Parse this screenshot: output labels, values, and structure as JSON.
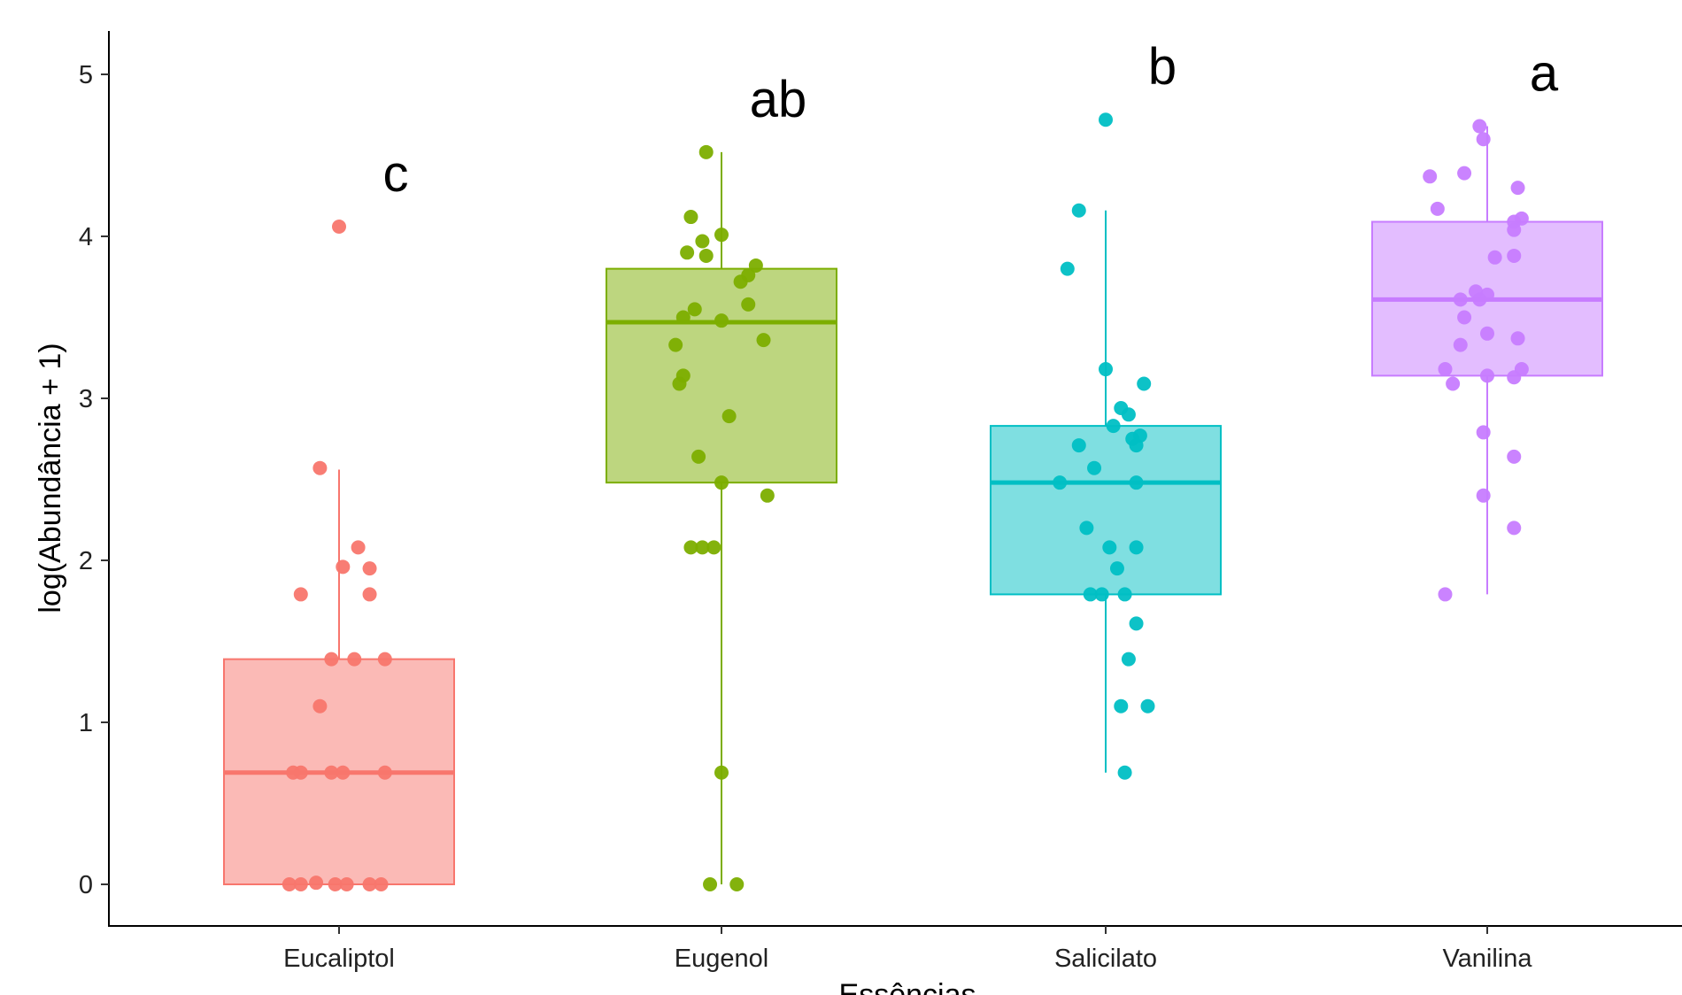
{
  "chart_data": {
    "type": "box",
    "title": "",
    "xlabel": "Essências",
    "ylabel": "log(Abundância + 1)",
    "ylim": [
      -0.25,
      5.25
    ],
    "yticks": [
      0,
      1,
      2,
      3,
      4,
      5
    ],
    "grid": false,
    "legend": "none",
    "categories": [
      "Eucaliptol",
      "Eugenol",
      "Salicilato",
      "Vanilina"
    ],
    "series": [
      {
        "category": "Eucaliptol",
        "color": "#F8766D",
        "letter": "c",
        "box": {
          "q1": 0.0,
          "median": 0.69,
          "q3": 1.39,
          "whisker_low": 0.0,
          "whisker_high": 2.56
        },
        "points": [
          {
            "x": 0,
            "y": 4.06
          },
          {
            "x": -0.05,
            "y": 2.57
          },
          {
            "x": 0.05,
            "y": 2.08
          },
          {
            "x": 0.01,
            "y": 1.96
          },
          {
            "x": 0.08,
            "y": 1.95
          },
          {
            "x": -0.1,
            "y": 1.79
          },
          {
            "x": 0.08,
            "y": 1.79
          },
          {
            "x": -0.02,
            "y": 1.39
          },
          {
            "x": 0.04,
            "y": 1.39
          },
          {
            "x": 0.12,
            "y": 1.39
          },
          {
            "x": -0.05,
            "y": 1.1
          },
          {
            "x": -0.12,
            "y": 0.69
          },
          {
            "x": -0.1,
            "y": 0.69
          },
          {
            "x": -0.02,
            "y": 0.69
          },
          {
            "x": 0.01,
            "y": 0.69
          },
          {
            "x": 0.12,
            "y": 0.69
          },
          {
            "x": -0.13,
            "y": 0.0
          },
          {
            "x": -0.1,
            "y": 0.0
          },
          {
            "x": -0.06,
            "y": 0.01
          },
          {
            "x": -0.01,
            "y": 0.0
          },
          {
            "x": 0.02,
            "y": 0.0
          },
          {
            "x": 0.08,
            "y": 0.0
          },
          {
            "x": 0.11,
            "y": 0.0
          }
        ]
      },
      {
        "category": "Eugenol",
        "color": "#7CAE00",
        "letter": "ab",
        "box": {
          "q1": 2.48,
          "median": 3.47,
          "q3": 3.8,
          "whisker_low": 0.0,
          "whisker_high": 4.52
        },
        "points": [
          {
            "x": -0.04,
            "y": 4.52
          },
          {
            "x": -0.08,
            "y": 4.12
          },
          {
            "x": -0.05,
            "y": 3.97
          },
          {
            "x": 0.0,
            "y": 4.01
          },
          {
            "x": -0.09,
            "y": 3.9
          },
          {
            "x": -0.04,
            "y": 3.88
          },
          {
            "x": 0.09,
            "y": 3.82
          },
          {
            "x": 0.07,
            "y": 3.76
          },
          {
            "x": 0.05,
            "y": 3.72
          },
          {
            "x": 0.07,
            "y": 3.58
          },
          {
            "x": -0.07,
            "y": 3.55
          },
          {
            "x": -0.1,
            "y": 3.5
          },
          {
            "x": 0.0,
            "y": 3.48
          },
          {
            "x": -0.12,
            "y": 3.33
          },
          {
            "x": 0.11,
            "y": 3.36
          },
          {
            "x": -0.1,
            "y": 3.14
          },
          {
            "x": -0.11,
            "y": 3.09
          },
          {
            "x": 0.02,
            "y": 2.89
          },
          {
            "x": -0.06,
            "y": 2.64
          },
          {
            "x": 0.0,
            "y": 2.48
          },
          {
            "x": 0.12,
            "y": 2.4
          },
          {
            "x": -0.08,
            "y": 2.08
          },
          {
            "x": -0.05,
            "y": 2.08
          },
          {
            "x": -0.02,
            "y": 2.08
          },
          {
            "x": 0.0,
            "y": 0.69
          },
          {
            "x": -0.03,
            "y": 0.0
          },
          {
            "x": 0.04,
            "y": 0.0
          }
        ]
      },
      {
        "category": "Salicilato",
        "color": "#00BFC4",
        "letter": "b",
        "box": {
          "q1": 1.79,
          "median": 2.48,
          "q3": 2.83,
          "whisker_low": 0.69,
          "whisker_high": 4.16
        },
        "points": [
          {
            "x": 0.0,
            "y": 4.72
          },
          {
            "x": -0.07,
            "y": 4.16
          },
          {
            "x": -0.1,
            "y": 3.8
          },
          {
            "x": 0.0,
            "y": 3.18
          },
          {
            "x": 0.1,
            "y": 3.09
          },
          {
            "x": 0.04,
            "y": 2.94
          },
          {
            "x": 0.06,
            "y": 2.9
          },
          {
            "x": 0.02,
            "y": 2.83
          },
          {
            "x": 0.09,
            "y": 2.77
          },
          {
            "x": 0.07,
            "y": 2.75
          },
          {
            "x": 0.08,
            "y": 2.71
          },
          {
            "x": -0.07,
            "y": 2.71
          },
          {
            "x": -0.03,
            "y": 2.57
          },
          {
            "x": -0.12,
            "y": 2.48
          },
          {
            "x": 0.08,
            "y": 2.48
          },
          {
            "x": -0.05,
            "y": 2.2
          },
          {
            "x": 0.01,
            "y": 2.08
          },
          {
            "x": 0.08,
            "y": 2.08
          },
          {
            "x": 0.03,
            "y": 1.95
          },
          {
            "x": -0.04,
            "y": 1.79
          },
          {
            "x": -0.01,
            "y": 1.79
          },
          {
            "x": 0.05,
            "y": 1.79
          },
          {
            "x": 0.08,
            "y": 1.61
          },
          {
            "x": 0.06,
            "y": 1.39
          },
          {
            "x": 0.04,
            "y": 1.1
          },
          {
            "x": 0.11,
            "y": 1.1
          },
          {
            "x": 0.05,
            "y": 0.69
          }
        ]
      },
      {
        "category": "Vanilina",
        "color": "#C77CFF",
        "letter": "a",
        "box": {
          "q1": 3.14,
          "median": 3.61,
          "q3": 4.09,
          "whisker_low": 1.79,
          "whisker_high": 4.68
        },
        "points": [
          {
            "x": -0.02,
            "y": 4.68
          },
          {
            "x": -0.01,
            "y": 4.6
          },
          {
            "x": -0.15,
            "y": 4.37
          },
          {
            "x": -0.06,
            "y": 4.39
          },
          {
            "x": 0.08,
            "y": 4.3
          },
          {
            "x": -0.13,
            "y": 4.17
          },
          {
            "x": 0.07,
            "y": 4.09
          },
          {
            "x": 0.09,
            "y": 4.11
          },
          {
            "x": 0.07,
            "y": 4.04
          },
          {
            "x": 0.02,
            "y": 3.87
          },
          {
            "x": 0.07,
            "y": 3.88
          },
          {
            "x": -0.03,
            "y": 3.66
          },
          {
            "x": -0.02,
            "y": 3.61
          },
          {
            "x": -0.07,
            "y": 3.61
          },
          {
            "x": 0.0,
            "y": 3.64
          },
          {
            "x": -0.06,
            "y": 3.5
          },
          {
            "x": 0.0,
            "y": 3.4
          },
          {
            "x": 0.08,
            "y": 3.37
          },
          {
            "x": -0.07,
            "y": 3.33
          },
          {
            "x": -0.11,
            "y": 3.18
          },
          {
            "x": 0.09,
            "y": 3.18
          },
          {
            "x": 0.0,
            "y": 3.14
          },
          {
            "x": 0.07,
            "y": 3.13
          },
          {
            "x": -0.09,
            "y": 3.09
          },
          {
            "x": -0.01,
            "y": 2.79
          },
          {
            "x": 0.07,
            "y": 2.64
          },
          {
            "x": -0.01,
            "y": 2.4
          },
          {
            "x": 0.07,
            "y": 2.2
          },
          {
            "x": -0.11,
            "y": 1.79
          }
        ]
      }
    ]
  }
}
